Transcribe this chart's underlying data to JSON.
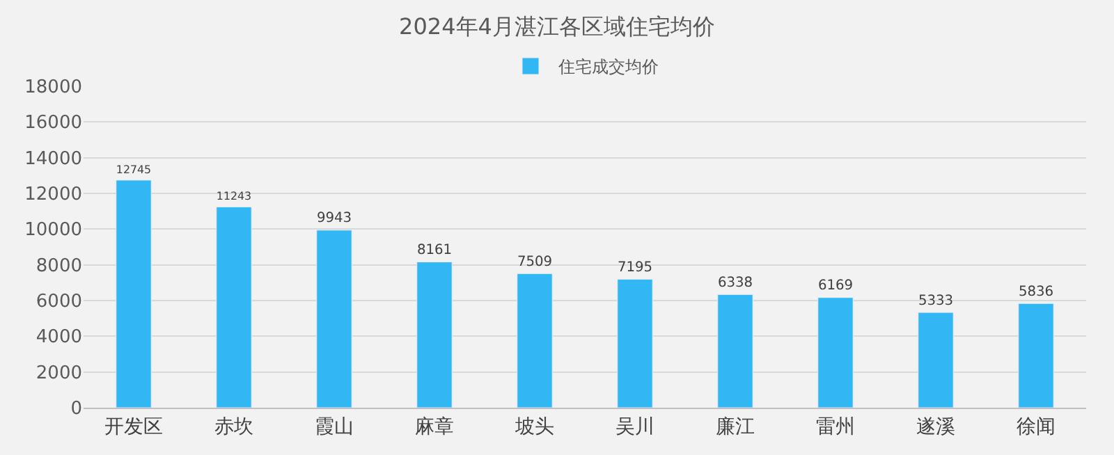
{
  "chart_data": {
    "type": "bar",
    "title": "2024年4月湛江各区域住宅均价",
    "categories": [
      "开发区",
      "赤坎",
      "霞山",
      "麻章",
      "坡头",
      "吴川",
      "廉江",
      "雷州",
      "遂溪",
      "徐闻"
    ],
    "series": [
      {
        "name": "住宅成交均价",
        "color": "#33b6f4",
        "values": [
          12745,
          11243,
          9943,
          8161,
          7509,
          7195,
          6338,
          6169,
          5333,
          5836
        ]
      }
    ],
    "ylim": [
      0,
      18000
    ],
    "yticks": [
      0,
      2000,
      4000,
      6000,
      8000,
      10000,
      12000,
      14000,
      16000,
      18000
    ],
    "grid": "y",
    "legend": "top",
    "data_labels": true
  }
}
